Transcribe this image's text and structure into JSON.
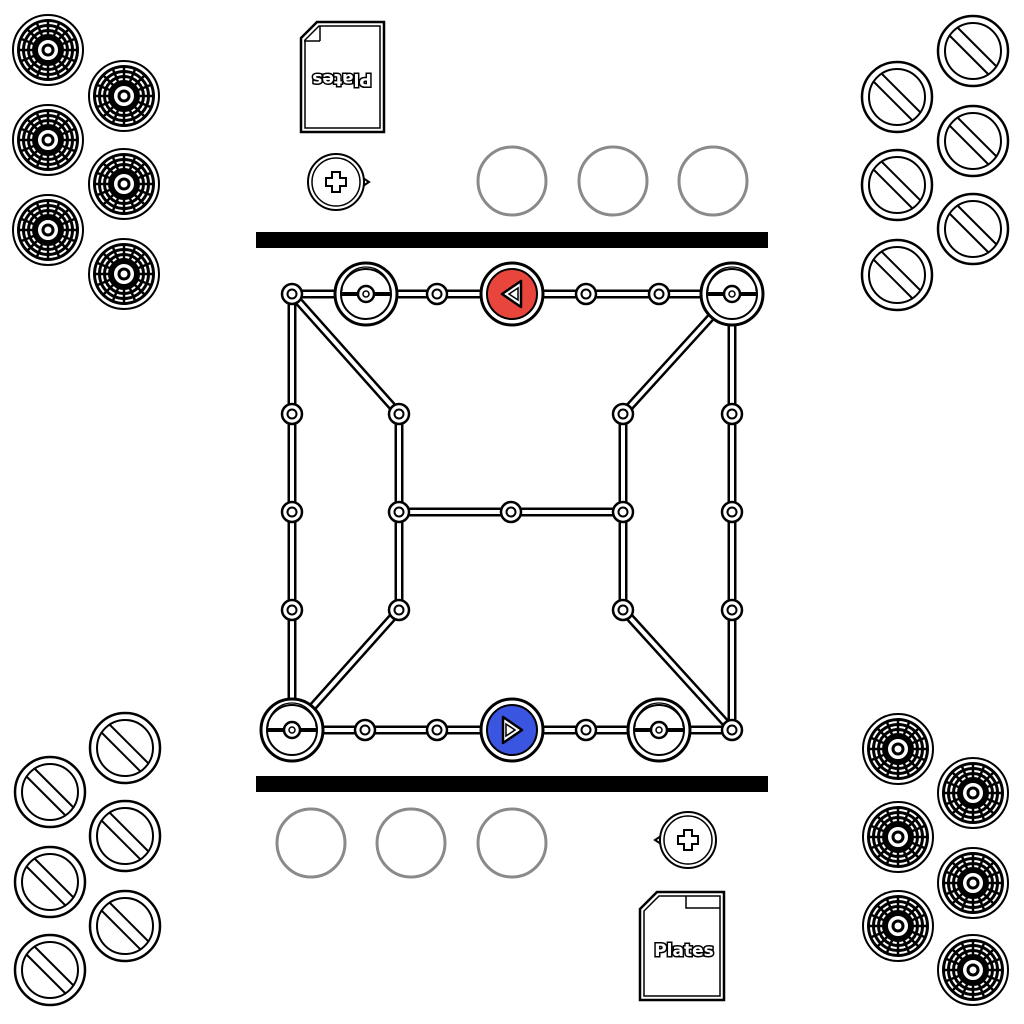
{
  "game": {
    "deck_top_label": "Plates",
    "deck_bottom_label": "Plates"
  },
  "colors": {
    "ink": "#000000",
    "background": "#ffffff",
    "empty_slot": "#8a8a8a",
    "opponent_piece": "#e8453c",
    "player_piece": "#3a55e0"
  },
  "icons": {
    "stock_piece": "target-disc-icon",
    "spent_piece": "no-entry-disc-icon",
    "energy_button": "plus-bubble-icon",
    "deck": "card-deck-icon",
    "start_node": "pokeball-icon",
    "active_piece": "arrow-triangle-icon"
  }
}
